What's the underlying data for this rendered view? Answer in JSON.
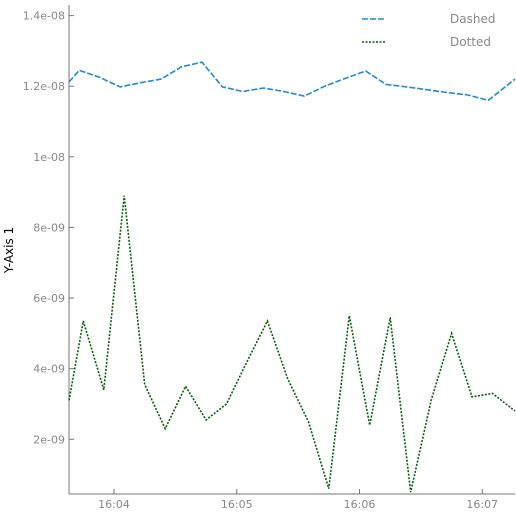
{
  "chart_data": {
    "type": "line",
    "title": "",
    "xlabel": "",
    "ylabel": "Y-Axis 1",
    "x_tick_labels": [
      "16:04",
      "16:05",
      "16:06",
      "16:07"
    ],
    "y_tick_labels": [
      "2e-09",
      "4e-09",
      "6e-09",
      "8e-09",
      "1e-08",
      "1.2e-08",
      "1.4e-08"
    ],
    "x_ticks": [
      "16:04",
      "16:05",
      "16:06",
      "16:07"
    ],
    "y_ticks": [
      2e-09,
      4e-09,
      6e-09,
      8e-09,
      1e-08,
      1.2e-08,
      1.4e-08
    ],
    "xlim": [
      "16:03:38",
      "16:07:16"
    ],
    "ylim": [
      4.5e-10,
      1.43e-08
    ],
    "grid": false,
    "legend_position": "top-right",
    "series": [
      {
        "name": "Dashed",
        "color": "#1f8ad8",
        "line_style": "dashed",
        "x": [
          "16:03:38",
          "16:03:43",
          "16:03:53",
          "16:04:03",
          "16:04:13",
          "16:04:23",
          "16:04:33",
          "16:04:43",
          "16:04:53",
          "16:05:03",
          "16:05:13",
          "16:05:23",
          "16:05:33",
          "16:05:43",
          "16:05:53",
          "16:06:03",
          "16:06:13",
          "16:06:23",
          "16:06:33",
          "16:06:43",
          "16:06:53",
          "16:07:03",
          "16:07:16"
        ],
        "y": [
          1.212e-08,
          1.245e-08,
          1.225e-08,
          1.198e-08,
          1.21e-08,
          1.22e-08,
          1.255e-08,
          1.268e-08,
          1.198e-08,
          1.185e-08,
          1.195e-08,
          1.185e-08,
          1.172e-08,
          1.2e-08,
          1.222e-08,
          1.243e-08,
          1.205e-08,
          1.198e-08,
          1.19e-08,
          1.182e-08,
          1.175e-08,
          1.16e-08,
          1.22e-08
        ]
      },
      {
        "name": "Dotted",
        "color": "#006400",
        "line_style": "dotted",
        "x": [
          "16:03:38",
          "16:03:45",
          "16:03:55",
          "16:04:05",
          "16:04:15",
          "16:04:25",
          "16:04:35",
          "16:04:45",
          "16:04:55",
          "16:05:05",
          "16:05:15",
          "16:05:25",
          "16:05:35",
          "16:05:45",
          "16:05:55",
          "16:06:05",
          "16:06:15",
          "16:06:25",
          "16:06:35",
          "16:06:45",
          "16:06:55",
          "16:07:05",
          "16:07:16"
        ],
        "y": [
          3.1e-09,
          5.35e-09,
          3.4e-09,
          8.9e-09,
          3.55e-09,
          2.3e-09,
          3.5e-09,
          2.55e-09,
          3e-09,
          4.2e-09,
          5.35e-09,
          3.7e-09,
          2.5e-09,
          6e-10,
          5.5e-09,
          2.4e-09,
          5.45e-09,
          5e-10,
          3.1e-09,
          5e-09,
          3.2e-09,
          3.3e-09,
          2.8e-09
        ]
      }
    ]
  }
}
